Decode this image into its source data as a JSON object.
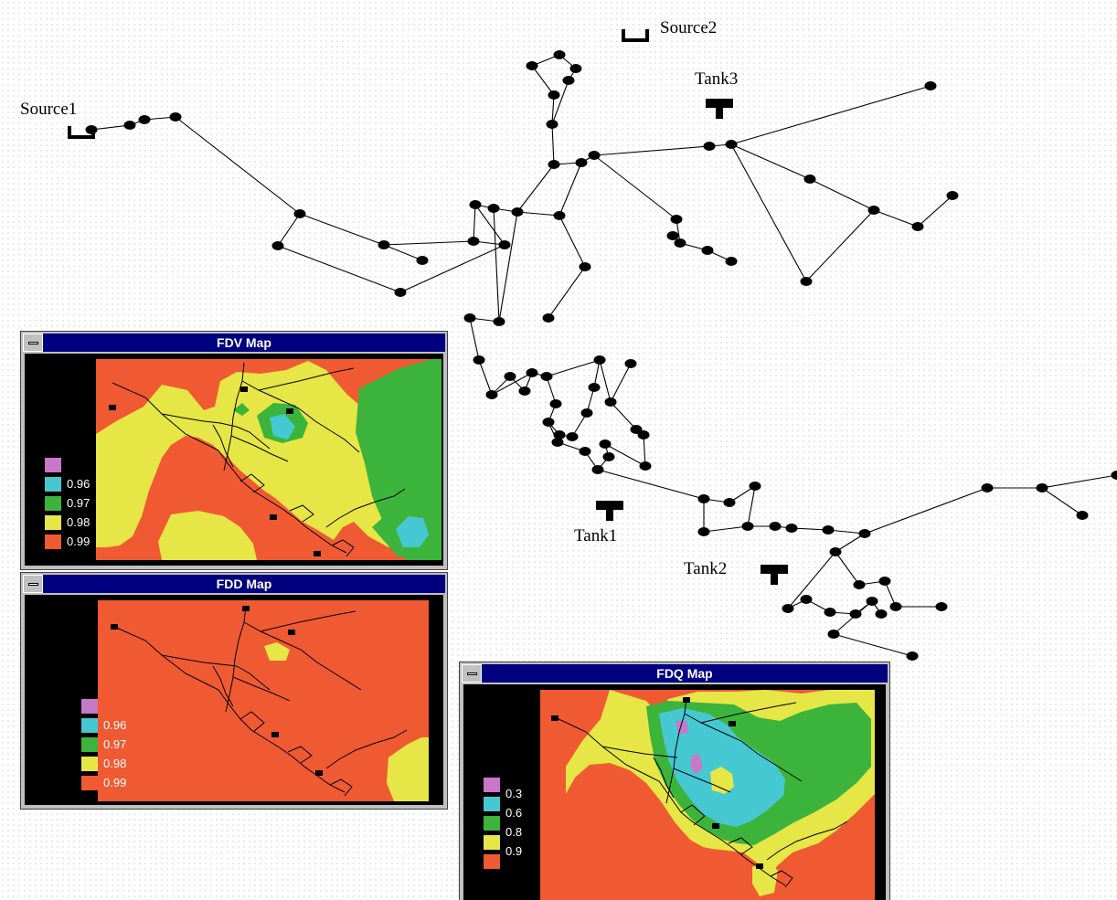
{
  "colors": {
    "magenta": "#c878c8",
    "cyan": "#46c8d2",
    "green": "#3cb43c",
    "yellow": "#e6e646",
    "orange": "#f05a32",
    "title_bar": "#000080"
  },
  "network": {
    "sources": [
      {
        "label": "Source1"
      },
      {
        "label": "Source2"
      }
    ],
    "tanks": [
      {
        "label": "Tank1"
      },
      {
        "label": "Tank2"
      },
      {
        "label": "Tank3"
      }
    ]
  },
  "windows": [
    {
      "title": "FDV Map",
      "legend": [
        "",
        "0.96",
        "0.97",
        "0.98",
        "0.99"
      ]
    },
    {
      "title": "FDD Map",
      "legend": [
        "",
        "0.96",
        "0.97",
        "0.98",
        "0.99"
      ]
    },
    {
      "title": "FDQ Map",
      "legend": [
        "0.3",
        "0.6",
        "0.8",
        "0.9",
        "0.9"
      ]
    }
  ]
}
